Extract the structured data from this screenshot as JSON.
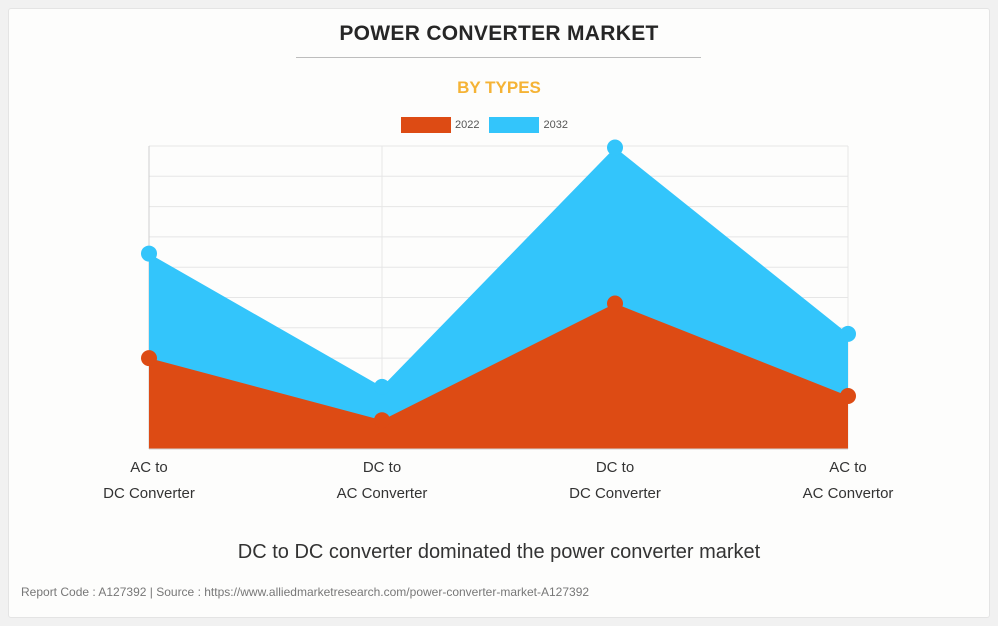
{
  "footer": {
    "text": "Report Code : A127392  |  Source : https://www.alliedmarketresearch.com/power-converter-market-A127392"
  },
  "caption": "DC to DC converter dominated the power converter market",
  "colors": {
    "series_2022": "#dd4b14",
    "series_2032": "#33c5fb",
    "grid": "#e6e6e6",
    "subtitle": "#f5b335"
  },
  "chart_data": {
    "type": "area",
    "title": "POWER CONVERTER MARKET",
    "subtitle": "BY TYPES",
    "categories": [
      "AC to\nDC Converter",
      "DC to\nAC Converter",
      "DC to\nDC Converter",
      "AC to\nAC Convertor"
    ],
    "categories_lines": [
      [
        "AC to",
        "DC Converter"
      ],
      [
        "DC to",
        "AC Converter"
      ],
      [
        "DC to",
        "DC Converter"
      ],
      [
        "AC to",
        "AC Convertor"
      ]
    ],
    "series": [
      {
        "name": "2022",
        "values": [
          3.0,
          0.95,
          4.8,
          1.75
        ]
      },
      {
        "name": "2032",
        "values": [
          6.45,
          2.05,
          9.95,
          3.8
        ]
      }
    ],
    "ylim": [
      0,
      10
    ],
    "y_axis_labels_shown": false,
    "grid": true,
    "legend": "top-center",
    "xlabel": "",
    "ylabel": ""
  }
}
